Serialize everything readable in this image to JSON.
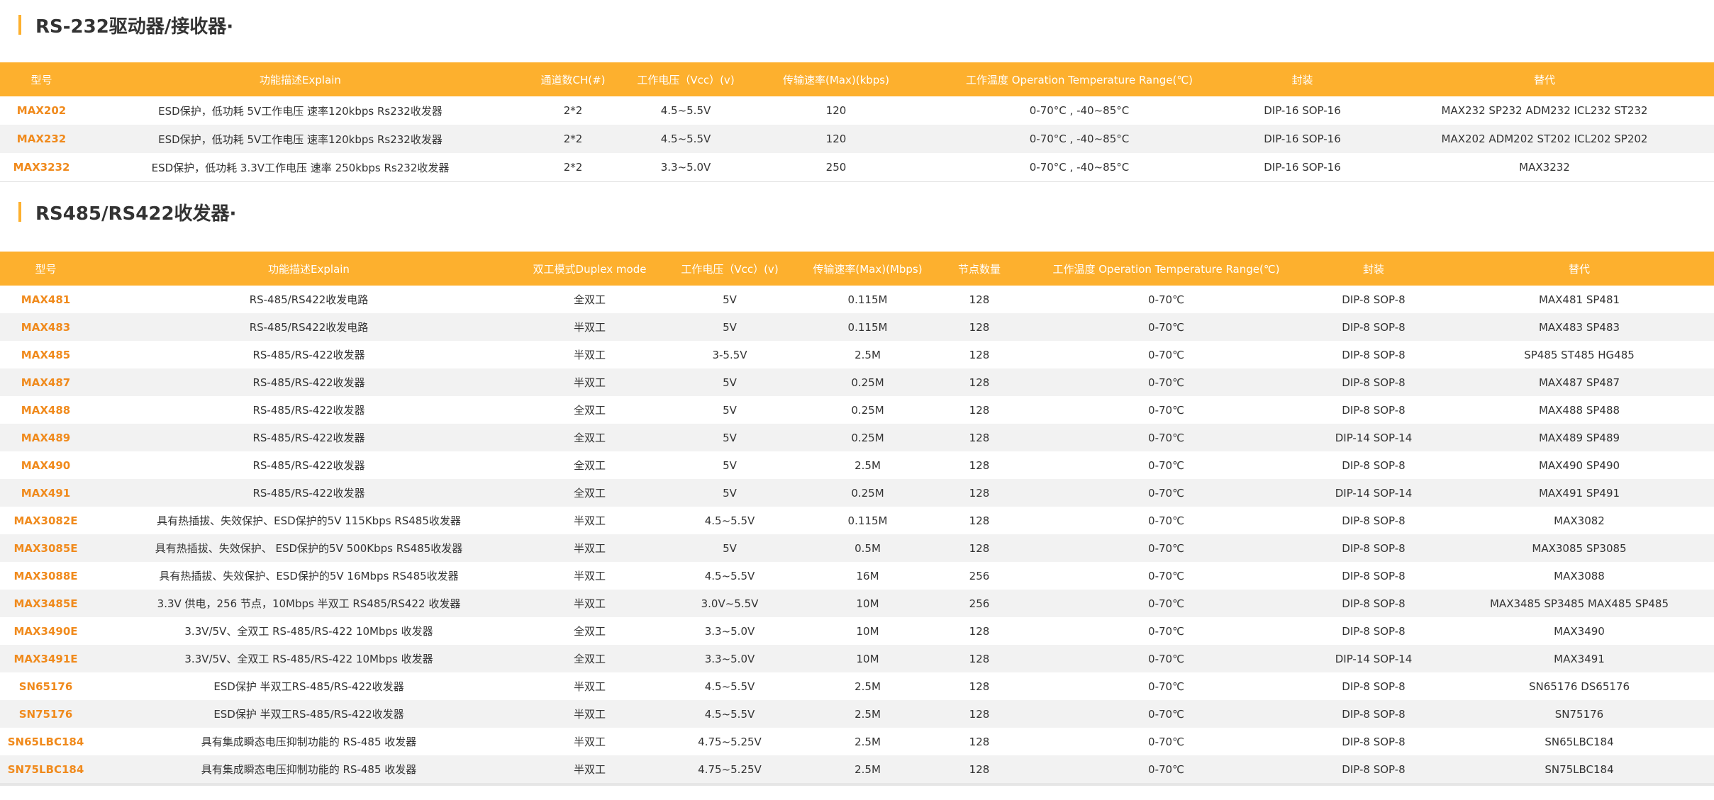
{
  "sections": [
    {
      "title": "RS-232驱动器/接收器·",
      "headers": [
        "型号",
        "功能描述Explain",
        "通道数CH(#)",
        "工作电压（Vcc）(v)",
        "传输速率(Max)(kbps)",
        "工作温度 Operation Temperature Range(℃)",
        "封装",
        "替代"
      ],
      "rows": [
        [
          "MAX202",
          "ESD保护，低功耗 5V工作电压 速率120kbps Rs232收发器",
          "2*2",
          "4.5~5.5V",
          "120",
          "0-70°C , -40~85°C",
          "DIP-16 SOP-16",
          "MAX232 SP232 ADM232 ICL232 ST232"
        ],
        [
          "MAX232",
          "ESD保护，低功耗 5V工作电压 速率120kbps Rs232收发器",
          "2*2",
          "4.5~5.5V",
          "120",
          "0-70°C , -40~85°C",
          "DIP-16 SOP-16",
          "MAX202 ADM202 ST202 ICL202 SP202"
        ],
        [
          "MAX3232",
          "ESD保护，低功耗 3.3V工作电压 速率 250kbps Rs232收发器",
          "2*2",
          "3.3~5.0V",
          "250",
          "0-70°C , -40~85°C",
          "DIP-16 SOP-16",
          "MAX3232"
        ]
      ]
    },
    {
      "title": "RS485/RS422收发器·",
      "headers": [
        "型号",
        "功能描述Explain",
        "双工模式Duplex mode",
        "工作电压（Vcc）(v)",
        "传输速率(Max)(Mbps)",
        "节点数量",
        "工作温度 Operation Temperature Range(℃)",
        "封装",
        "替代"
      ],
      "rows": [
        [
          "MAX481",
          "RS-485/RS422收发电路",
          "全双工",
          "5V",
          "0.115M",
          "128",
          "0-70℃",
          "DIP-8 SOP-8",
          "MAX481 SP481"
        ],
        [
          "MAX483",
          "RS-485/RS422收发电路",
          "半双工",
          "5V",
          "0.115M",
          "128",
          "0-70℃",
          "DIP-8 SOP-8",
          "MAX483 SP483"
        ],
        [
          "MAX485",
          "RS-485/RS-422收发器",
          "半双工",
          "3-5.5V",
          "2.5M",
          "128",
          "0-70℃",
          "DIP-8 SOP-8",
          "SP485 ST485 HG485"
        ],
        [
          "MAX487",
          "RS-485/RS-422收发器",
          "半双工",
          "5V",
          "0.25M",
          "128",
          "0-70℃",
          "DIP-8 SOP-8",
          "MAX487 SP487"
        ],
        [
          "MAX488",
          "RS-485/RS-422收发器",
          "全双工",
          "5V",
          "0.25M",
          "128",
          "0-70℃",
          "DIP-8 SOP-8",
          "MAX488 SP488"
        ],
        [
          "MAX489",
          "RS-485/RS-422收发器",
          "全双工",
          "5V",
          "0.25M",
          "128",
          "0-70℃",
          "DIP-14 SOP-14",
          "MAX489 SP489"
        ],
        [
          "MAX490",
          "RS-485/RS-422收发器",
          "全双工",
          "5V",
          "2.5M",
          "128",
          "0-70℃",
          "DIP-8 SOP-8",
          "MAX490 SP490"
        ],
        [
          "MAX491",
          "RS-485/RS-422收发器",
          "全双工",
          "5V",
          "0.25M",
          "128",
          "0-70℃",
          "DIP-14 SOP-14",
          "MAX491 SP491"
        ],
        [
          "MAX3082E",
          "具有热插拔、失效保护、ESD保护的5V 115Kbps RS485收发器",
          "半双工",
          "4.5~5.5V",
          "0.115M",
          "128",
          "0-70℃",
          "DIP-8 SOP-8",
          "MAX3082"
        ],
        [
          "MAX3085E",
          "具有热插拔、失效保护、 ESD保护的5V 500Kbps RS485收发器",
          "半双工",
          "5V",
          "0.5M",
          "128",
          "0-70℃",
          "DIP-8 SOP-8",
          "MAX3085 SP3085"
        ],
        [
          "MAX3088E",
          "具有热插拔、失效保护、ESD保护的5V 16Mbps RS485收发器",
          "半双工",
          "4.5~5.5V",
          "16M",
          "256",
          "0-70℃",
          "DIP-8 SOP-8",
          "MAX3088"
        ],
        [
          "MAX3485E",
          "3.3V 供电，256 节点，10Mbps 半双工 RS485/RS422 收发器",
          "半双工",
          "3.0V~5.5V",
          "10M",
          "256",
          "0-70℃",
          "DIP-8 SOP-8",
          "MAX3485 SP3485 MAX485 SP485"
        ],
        [
          "MAX3490E",
          "3.3V/5V、全双工 RS-485/RS-422 10Mbps 收发器",
          "全双工",
          "3.3~5.0V",
          "10M",
          "128",
          "0-70℃",
          "DIP-8 SOP-8",
          "MAX3490"
        ],
        [
          "MAX3491E",
          "3.3V/5V、全双工 RS-485/RS-422 10Mbps 收发器",
          "全双工",
          "3.3~5.0V",
          "10M",
          "128",
          "0-70℃",
          "DIP-14 SOP-14",
          "MAX3491"
        ],
        [
          "SN65176",
          "ESD保护 半双工RS-485/RS-422收发器",
          "半双工",
          "4.5~5.5V",
          "2.5M",
          "128",
          "0-70℃",
          "DIP-8 SOP-8",
          "SN65176 DS65176"
        ],
        [
          "SN75176",
          "ESD保护 半双工RS-485/RS-422收发器",
          "半双工",
          "4.5~5.5V",
          "2.5M",
          "128",
          "0-70℃",
          "DIP-8 SOP-8",
          "SN75176"
        ],
        [
          "SN65LBC184",
          "具有集成瞬态电压抑制功能的 RS-485 收发器",
          "半双工",
          "4.75~5.25V",
          "2.5M",
          "128",
          "0-70℃",
          "DIP-8 SOP-8",
          "SN65LBC184"
        ],
        [
          "SN75LBC184",
          "具有集成瞬态电压抑制功能的 RS-485 收发器",
          "半双工",
          "4.75~5.25V",
          "2.5M",
          "128",
          "0-70℃",
          "DIP-8 SOP-8",
          "SN75LBC184"
        ]
      ]
    }
  ]
}
